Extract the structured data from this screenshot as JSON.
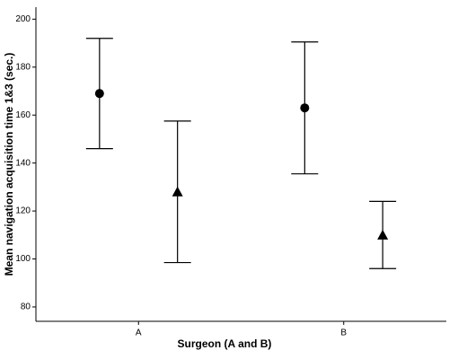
{
  "chart_data": {
    "type": "errorbar",
    "x_label": "Surgeon (A and B)",
    "y_label": "Mean navigation acquisition time 1&3 (sec.)",
    "categories": [
      "A",
      "B"
    ],
    "series": [
      {
        "marker": "circle",
        "color": "#000000",
        "values": [
          169,
          163
        ],
        "errors": [
          23,
          27.5
        ]
      },
      {
        "marker": "triangle",
        "color": "#000000",
        "values": [
          128,
          110
        ],
        "errors": [
          29.5,
          14
        ]
      }
    ],
    "ylim": [
      74,
      205
    ],
    "yticks": [
      80,
      100,
      120,
      140,
      160,
      180,
      200
    ]
  }
}
